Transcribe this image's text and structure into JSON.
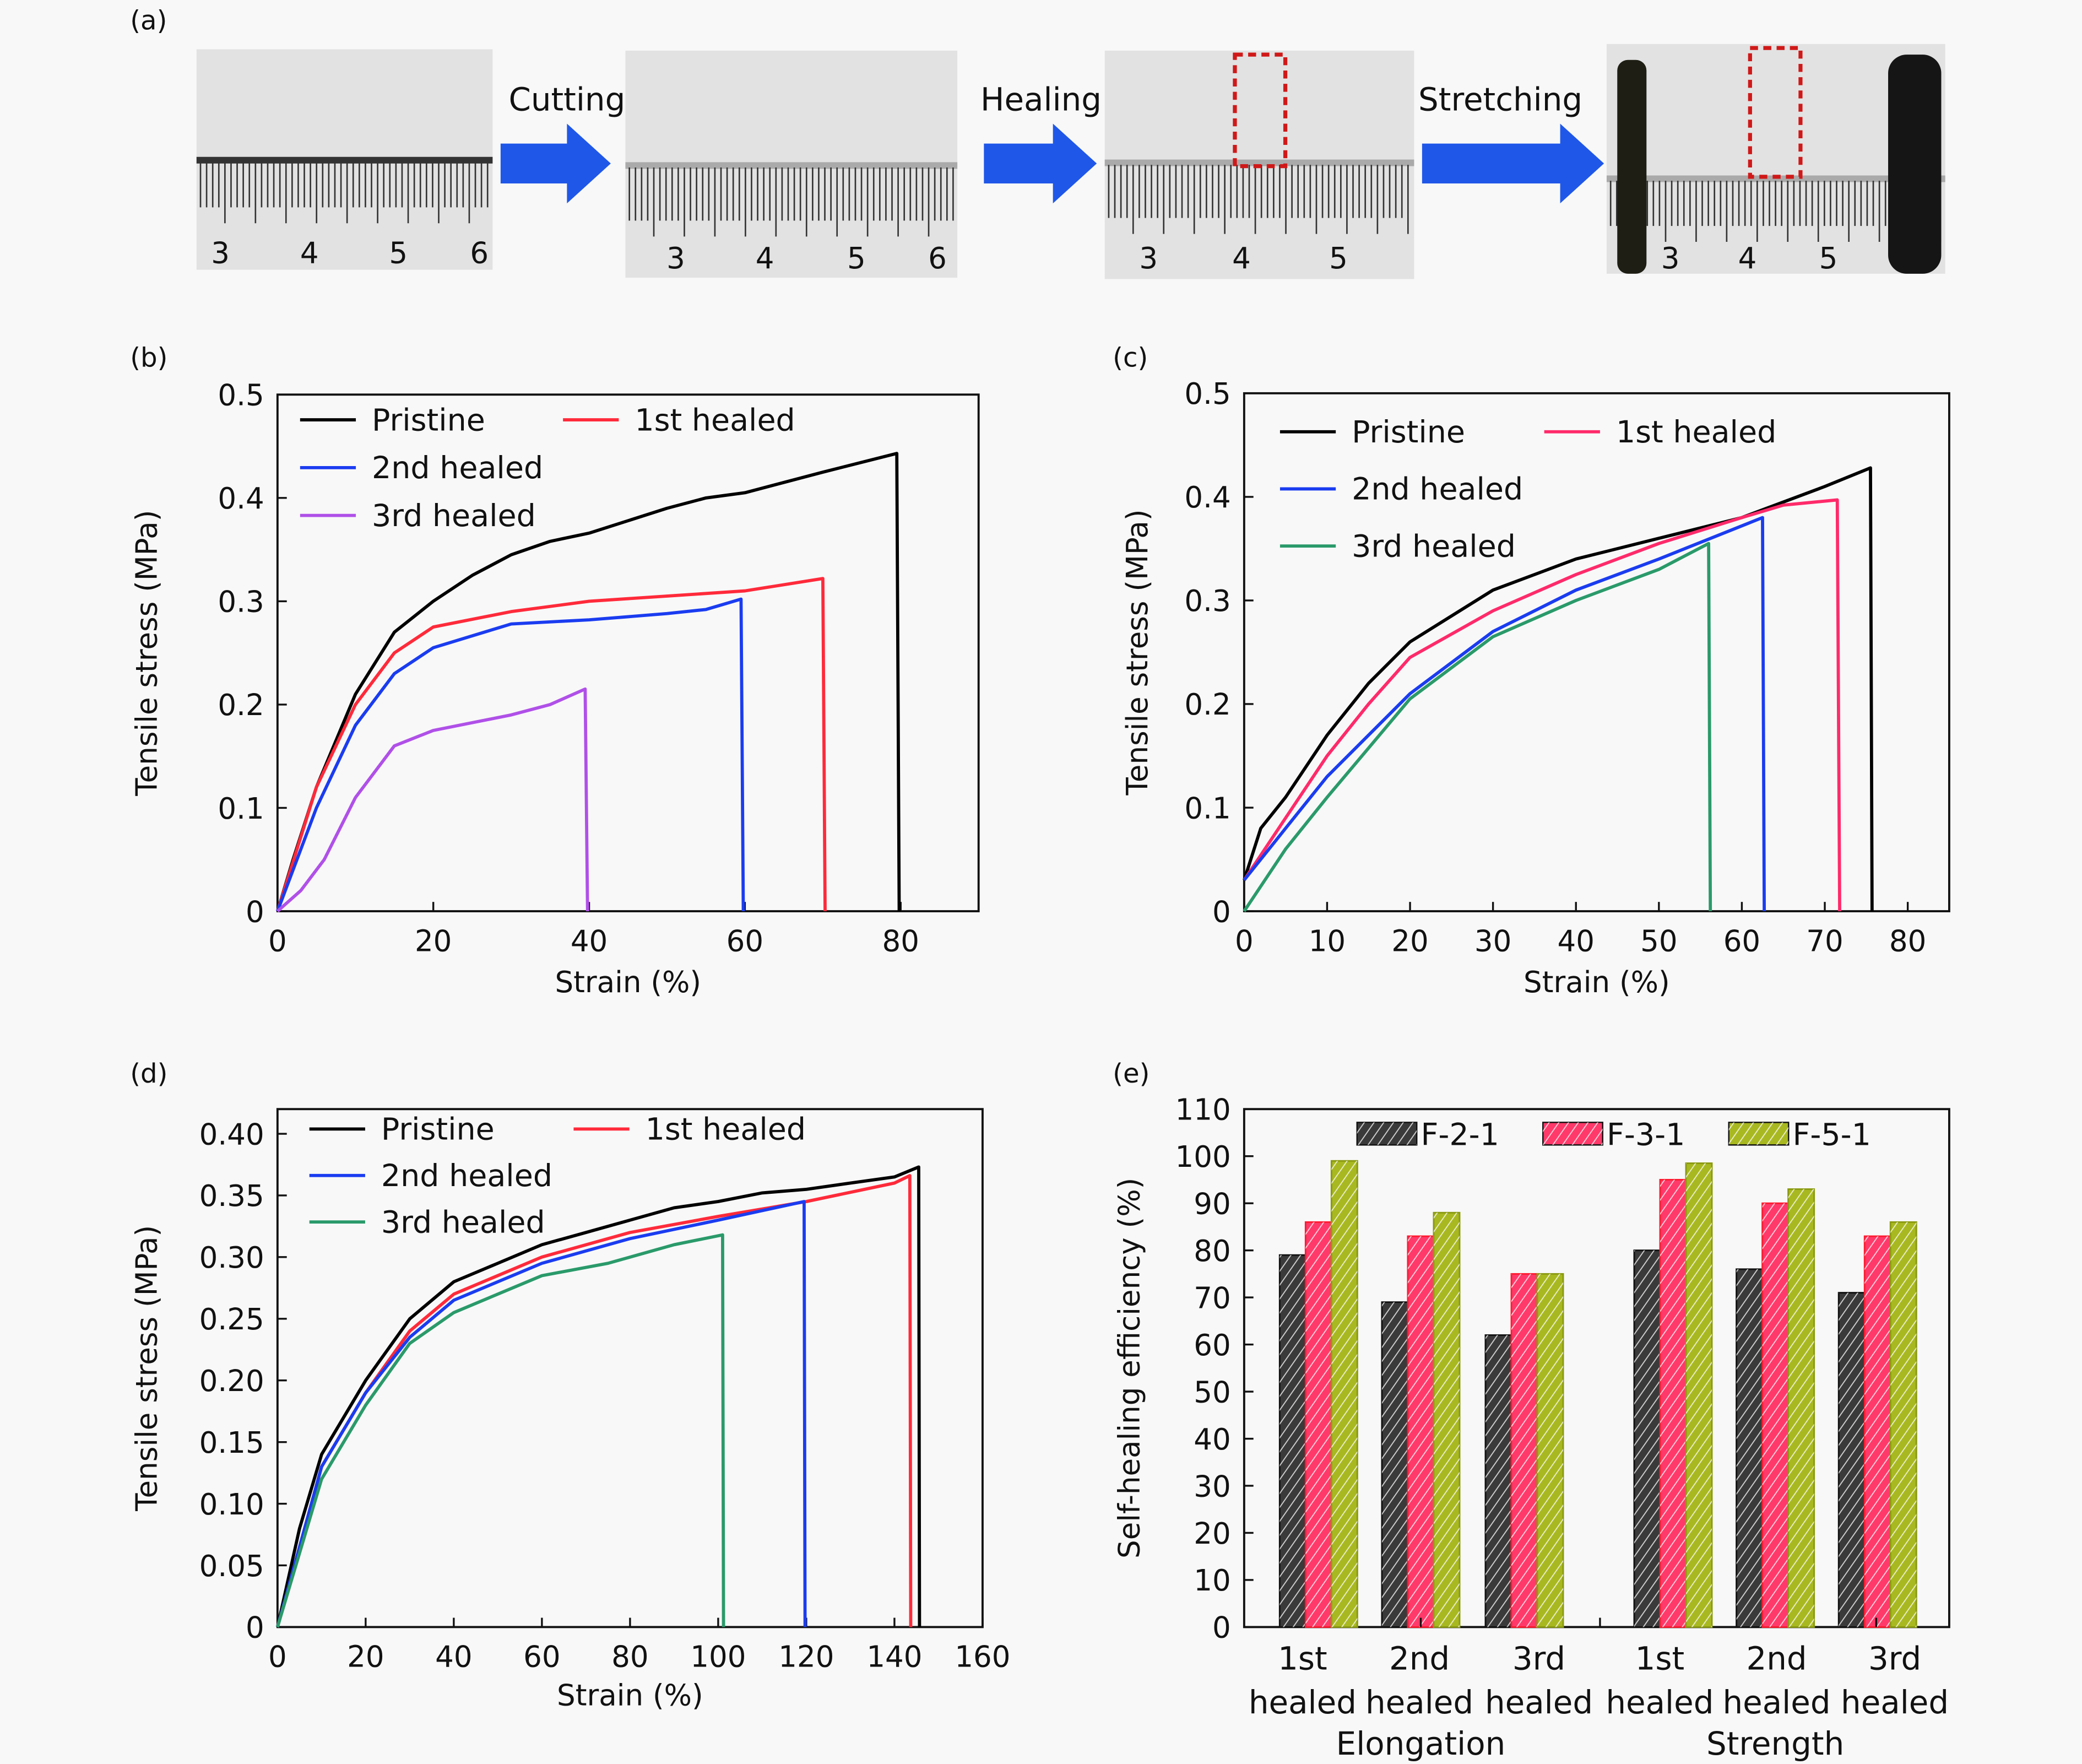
{
  "panel_a": {
    "label": "(a)",
    "steps": [
      "Cutting",
      "Healing",
      "Stretching"
    ],
    "ruler_numbers": [
      [
        "3",
        "4",
        "5",
        "6"
      ],
      [
        "3",
        "4",
        "5",
        "6"
      ],
      [
        "3",
        "4",
        "5"
      ],
      [
        "3",
        "4",
        "5"
      ]
    ],
    "arrow_color": "#1f57e8",
    "marker_color": "#d01818"
  },
  "chart_data": [
    {
      "panel": "(b)",
      "type": "line",
      "xlabel": "Strain (%)",
      "ylabel": "Tensile stress (MPa)",
      "xlim": [
        0,
        90
      ],
      "ylim": [
        0,
        0.5
      ],
      "xticks": [
        0,
        20,
        40,
        60,
        80
      ],
      "xtick_labels": [
        "0",
        "20",
        "40",
        "60",
        "80"
      ],
      "yticks": [
        0,
        0.1,
        0.2,
        0.3,
        0.4,
        0.5
      ],
      "ytick_labels": [
        "0",
        "0.1",
        "0.2",
        "0.3",
        "0.4",
        "0.5"
      ],
      "legend": "top-left",
      "series": [
        {
          "name": "Pristine",
          "color": "#000000",
          "points": [
            [
              0,
              0
            ],
            [
              2,
              0.05
            ],
            [
              5,
              0.12
            ],
            [
              10,
              0.21
            ],
            [
              15,
              0.27
            ],
            [
              20,
              0.3
            ],
            [
              25,
              0.325
            ],
            [
              30,
              0.345
            ],
            [
              35,
              0.358
            ],
            [
              40,
              0.366
            ],
            [
              50,
              0.39
            ],
            [
              55,
              0.4
            ],
            [
              60,
              0.405
            ],
            [
              70,
              0.425
            ],
            [
              79.5,
              0.443
            ],
            [
              79.8,
              0
            ]
          ]
        },
        {
          "name": "1st healed",
          "color": "#ff2a3a",
          "points": [
            [
              0,
              0
            ],
            [
              5,
              0.12
            ],
            [
              10,
              0.2
            ],
            [
              15,
              0.25
            ],
            [
              20,
              0.275
            ],
            [
              30,
              0.29
            ],
            [
              40,
              0.3
            ],
            [
              50,
              0.305
            ],
            [
              60,
              0.31
            ],
            [
              70,
              0.322
            ],
            [
              70.3,
              0
            ]
          ]
        },
        {
          "name": "2nd healed",
          "color": "#1a3cf0",
          "points": [
            [
              0,
              0
            ],
            [
              5,
              0.1
            ],
            [
              10,
              0.18
            ],
            [
              15,
              0.23
            ],
            [
              20,
              0.255
            ],
            [
              30,
              0.278
            ],
            [
              40,
              0.282
            ],
            [
              50,
              0.288
            ],
            [
              55,
              0.292
            ],
            [
              59.5,
              0.302
            ],
            [
              59.8,
              0
            ]
          ]
        },
        {
          "name": "3rd healed",
          "color": "#b050e8",
          "points": [
            [
              0,
              0
            ],
            [
              3,
              0.02
            ],
            [
              6,
              0.05
            ],
            [
              10,
              0.11
            ],
            [
              15,
              0.16
            ],
            [
              20,
              0.175
            ],
            [
              30,
              0.19
            ],
            [
              35,
              0.2
            ],
            [
              39.5,
              0.215
            ],
            [
              39.8,
              0
            ]
          ]
        }
      ]
    },
    {
      "panel": "(c)",
      "type": "line",
      "xlabel": "Strain (%)",
      "ylabel": "Tensile stress (MPa)",
      "xlim": [
        0,
        85
      ],
      "ylim": [
        0,
        0.5
      ],
      "xticks": [
        0,
        10,
        20,
        30,
        40,
        50,
        60,
        70,
        80
      ],
      "xtick_labels": [
        "0",
        "10",
        "20",
        "30",
        "40",
        "50",
        "60",
        "70",
        "80"
      ],
      "yticks": [
        0,
        0.1,
        0.2,
        0.3,
        0.4,
        0.5
      ],
      "ytick_labels": [
        "0",
        "0.1",
        "0.2",
        "0.3",
        "0.4",
        "0.5"
      ],
      "legend": "top-left",
      "series": [
        {
          "name": "Pristine",
          "color": "#000000",
          "points": [
            [
              0,
              0.03
            ],
            [
              2,
              0.08
            ],
            [
              5,
              0.11
            ],
            [
              10,
              0.17
            ],
            [
              15,
              0.22
            ],
            [
              20,
              0.26
            ],
            [
              30,
              0.31
            ],
            [
              40,
              0.34
            ],
            [
              50,
              0.36
            ],
            [
              60,
              0.38
            ],
            [
              70,
              0.41
            ],
            [
              75.5,
              0.428
            ],
            [
              75.7,
              0
            ]
          ]
        },
        {
          "name": "1st healed",
          "color": "#ff2a6a",
          "points": [
            [
              0,
              0.03
            ],
            [
              5,
              0.09
            ],
            [
              10,
              0.15
            ],
            [
              15,
              0.2
            ],
            [
              20,
              0.245
            ],
            [
              30,
              0.29
            ],
            [
              40,
              0.325
            ],
            [
              50,
              0.355
            ],
            [
              60,
              0.38
            ],
            [
              65,
              0.392
            ],
            [
              71.5,
              0.397
            ],
            [
              71.8,
              0
            ]
          ]
        },
        {
          "name": "2nd healed",
          "color": "#1a3cf0",
          "points": [
            [
              0,
              0.03
            ],
            [
              5,
              0.08
            ],
            [
              10,
              0.13
            ],
            [
              20,
              0.21
            ],
            [
              30,
              0.27
            ],
            [
              40,
              0.31
            ],
            [
              50,
              0.34
            ],
            [
              62.5,
              0.38
            ],
            [
              62.7,
              0
            ]
          ]
        },
        {
          "name": "3rd healed",
          "color": "#2a9a6a",
          "points": [
            [
              0,
              0
            ],
            [
              5,
              0.06
            ],
            [
              10,
              0.11
            ],
            [
              20,
              0.205
            ],
            [
              30,
              0.265
            ],
            [
              40,
              0.3
            ],
            [
              50,
              0.33
            ],
            [
              56,
              0.355
            ],
            [
              56.2,
              0
            ]
          ]
        }
      ]
    },
    {
      "panel": "(d)",
      "type": "line",
      "xlabel": "Strain (%)",
      "ylabel": "Tensile stress (MPa)",
      "xlim": [
        0,
        160
      ],
      "ylim": [
        0,
        0.42
      ],
      "xticks": [
        0,
        20,
        40,
        60,
        80,
        100,
        120,
        140,
        160
      ],
      "xtick_labels": [
        "0",
        "20",
        "40",
        "60",
        "80",
        "100",
        "120",
        "140",
        "160"
      ],
      "yticks": [
        0,
        0.05,
        0.1,
        0.15,
        0.2,
        0.25,
        0.3,
        0.35,
        0.4
      ],
      "ytick_labels": [
        "0",
        "0.05",
        "0.10",
        "0.15",
        "0.20",
        "0.25",
        "0.30",
        "0.35",
        "0.40"
      ],
      "legend": "top-left",
      "series": [
        {
          "name": "Pristine",
          "color": "#000000",
          "points": [
            [
              0,
              0
            ],
            [
              5,
              0.08
            ],
            [
              10,
              0.14
            ],
            [
              20,
              0.2
            ],
            [
              30,
              0.25
            ],
            [
              40,
              0.28
            ],
            [
              50,
              0.295
            ],
            [
              60,
              0.31
            ],
            [
              70,
              0.32
            ],
            [
              80,
              0.33
            ],
            [
              90,
              0.34
            ],
            [
              100,
              0.345
            ],
            [
              110,
              0.352
            ],
            [
              120,
              0.355
            ],
            [
              130,
              0.36
            ],
            [
              140,
              0.365
            ],
            [
              145.5,
              0.373
            ],
            [
              145.7,
              0
            ]
          ]
        },
        {
          "name": "1st healed",
          "color": "#ff2a3a",
          "points": [
            [
              0,
              0
            ],
            [
              10,
              0.13
            ],
            [
              20,
              0.19
            ],
            [
              30,
              0.24
            ],
            [
              40,
              0.27
            ],
            [
              60,
              0.3
            ],
            [
              80,
              0.32
            ],
            [
              100,
              0.333
            ],
            [
              120,
              0.345
            ],
            [
              140,
              0.36
            ],
            [
              143.5,
              0.366
            ],
            [
              143.7,
              0
            ]
          ]
        },
        {
          "name": "2nd healed",
          "color": "#1a3cf0",
          "points": [
            [
              0,
              0
            ],
            [
              10,
              0.13
            ],
            [
              20,
              0.19
            ],
            [
              30,
              0.235
            ],
            [
              40,
              0.265
            ],
            [
              60,
              0.295
            ],
            [
              80,
              0.315
            ],
            [
              100,
              0.33
            ],
            [
              119.5,
              0.345
            ],
            [
              119.7,
              0
            ]
          ]
        },
        {
          "name": "3rd healed",
          "color": "#2a9a6a",
          "points": [
            [
              0,
              0
            ],
            [
              10,
              0.12
            ],
            [
              20,
              0.18
            ],
            [
              30,
              0.23
            ],
            [
              40,
              0.255
            ],
            [
              60,
              0.285
            ],
            [
              75,
              0.295
            ],
            [
              90,
              0.31
            ],
            [
              101,
              0.318
            ],
            [
              101.2,
              0
            ]
          ]
        }
      ]
    },
    {
      "panel": "(e)",
      "type": "bar",
      "ylabel": "Self-healing efficiency (%)",
      "ylim": [
        0,
        110
      ],
      "yticks": [
        0,
        10,
        20,
        30,
        40,
        50,
        60,
        70,
        80,
        90,
        100,
        110
      ],
      "ytick_labels": [
        "0",
        "10",
        "20",
        "30",
        "40",
        "50",
        "60",
        "70",
        "80",
        "90",
        "100",
        "110"
      ],
      "categories": [
        [
          "1st",
          "healed"
        ],
        [
          "2nd",
          "healed"
        ],
        [
          "3rd",
          "healed"
        ],
        [
          "1st",
          "healed"
        ],
        [
          "2nd",
          "healed"
        ],
        [
          "3rd",
          "healed"
        ]
      ],
      "groups": [
        "Elongation",
        "Strength"
      ],
      "legend": "top",
      "series": [
        {
          "name": "F-2-1",
          "color": "#3a3a3a",
          "values": [
            79,
            69,
            62,
            80,
            76,
            71
          ]
        },
        {
          "name": "F-3-1",
          "color": "#ff3a6a",
          "values": [
            86,
            83,
            75,
            95,
            90,
            83
          ]
        },
        {
          "name": "F-5-1",
          "color": "#a8b820",
          "values": [
            99,
            88,
            75,
            98.5,
            93,
            86
          ]
        }
      ]
    }
  ]
}
